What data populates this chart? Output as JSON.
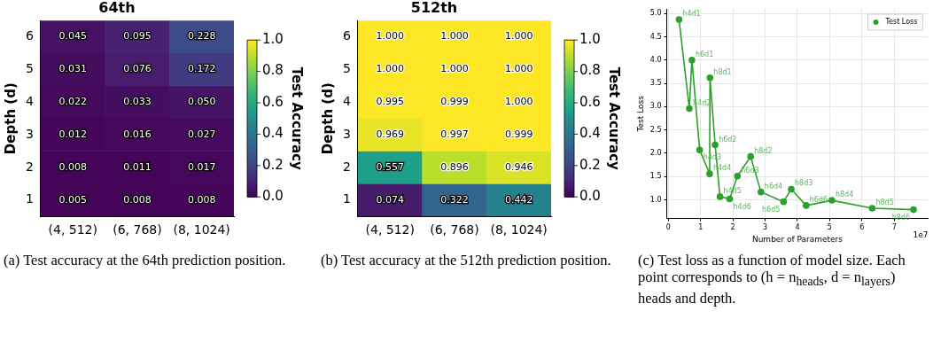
{
  "chart_data": [
    {
      "type": "heatmap",
      "title": "64th",
      "ylabel": "Depth (d)",
      "clabel": "Test Accuracy",
      "categories": [
        "(4, 512)",
        "(6, 768)",
        "(8, 1024)"
      ],
      "y_categories": [
        "6",
        "5",
        "4",
        "3",
        "2",
        "1"
      ],
      "cells": [
        [
          0.045,
          0.095,
          0.228
        ],
        [
          0.031,
          0.076,
          0.172
        ],
        [
          0.022,
          0.033,
          0.05
        ],
        [
          0.012,
          0.016,
          0.027
        ],
        [
          0.008,
          0.011,
          0.017
        ],
        [
          0.005,
          0.008,
          0.008
        ]
      ],
      "cell_labels": [
        [
          "0.045",
          "0.095",
          "0.228"
        ],
        [
          "0.031",
          "0.076",
          "0.172"
        ],
        [
          "0.022",
          "0.033",
          "0.050"
        ],
        [
          "0.012",
          "0.016",
          "0.027"
        ],
        [
          "0.008",
          "0.011",
          "0.017"
        ],
        [
          "0.005",
          "0.008",
          "0.008"
        ]
      ],
      "clim": [
        0,
        1
      ],
      "cticks": [
        {
          "value": 0,
          "label": "0.0"
        },
        {
          "value": 0.2,
          "label": "0.2"
        },
        {
          "value": 0.4,
          "label": "0.4"
        },
        {
          "value": 0.6,
          "label": "0.6"
        },
        {
          "value": 0.8,
          "label": "0.8"
        },
        {
          "value": 1,
          "label": "1.0"
        }
      ],
      "annotations": [
        "(a) Test accuracy at the 64th prediction position."
      ]
    },
    {
      "type": "heatmap",
      "title": "512th",
      "ylabel": "Depth (d)",
      "clabel": "Test Accuracy",
      "categories": [
        "(4, 512)",
        "(6, 768)",
        "(8, 1024)"
      ],
      "y_categories": [
        "6",
        "5",
        "4",
        "3",
        "2",
        "1"
      ],
      "cells": [
        [
          1,
          1,
          1
        ],
        [
          1,
          1,
          1
        ],
        [
          0.995,
          0.999,
          1
        ],
        [
          0.969,
          0.997,
          0.999
        ],
        [
          0.557,
          0.896,
          0.946
        ],
        [
          0.074,
          0.322,
          0.442
        ]
      ],
      "cell_labels": [
        [
          "1.000",
          "1.000",
          "1.000"
        ],
        [
          "1.000",
          "1.000",
          "1.000"
        ],
        [
          "0.995",
          "0.999",
          "1.000"
        ],
        [
          "0.969",
          "0.997",
          "0.999"
        ],
        [
          "0.557",
          "0.896",
          "0.946"
        ],
        [
          "0.074",
          "0.322",
          "0.442"
        ]
      ],
      "clim": [
        0,
        1
      ],
      "cticks": [
        {
          "value": 0,
          "label": "0.0"
        },
        {
          "value": 0.2,
          "label": "0.2"
        },
        {
          "value": 0.4,
          "label": "0.4"
        },
        {
          "value": 0.6,
          "label": "0.6"
        },
        {
          "value": 0.8,
          "label": "0.8"
        },
        {
          "value": 1,
          "label": "1.0"
        }
      ],
      "annotations": [
        "(b) Test accuracy at the 512th prediction position."
      ]
    },
    {
      "type": "line",
      "xlabel": "Number of Parameters",
      "ylabel": "Test Loss",
      "marker": "circle",
      "grid": true,
      "legend": "top right",
      "xlim": [
        -0.05,
        8.05
      ],
      "ylim": [
        0.6,
        5.1
      ],
      "xticks": [
        0,
        1,
        2,
        3,
        4,
        5,
        6,
        7
      ],
      "yticks": [
        {
          "value": 1,
          "label": "1.0"
        },
        {
          "value": 1.5,
          "label": "1.5"
        },
        {
          "value": 2,
          "label": "2.0"
        },
        {
          "value": 2.5,
          "label": "2.5"
        },
        {
          "value": 3,
          "label": "3.0"
        },
        {
          "value": 3.5,
          "label": "3.5"
        },
        {
          "value": 4,
          "label": "4.0"
        },
        {
          "value": 4.5,
          "label": "4.5"
        },
        {
          "value": 5,
          "label": "5.0"
        }
      ],
      "series": [
        {
          "name": "Test Loss",
          "color": "#2ca02c",
          "x": [
            0.33,
            0.65,
            0.73,
            0.97,
            1.28,
            1.29,
            1.45,
            1.6,
            1.9,
            2.14,
            2.55,
            2.87,
            3.57,
            3.81,
            4.27,
            5.07,
            6.32,
            7.6
          ],
          "values": [
            4.87,
            2.96,
            4.0,
            2.07,
            1.56,
            3.62,
            2.18,
            1.07,
            1.02,
            1.51,
            1.93,
            1.17,
            0.96,
            1.23,
            0.88,
            0.99,
            0.82,
            0.79
          ]
        }
      ],
      "annotations": [
        {
          "text": "h4d1",
          "x": 0.33,
          "y": 4.87
        },
        {
          "text": "h4d2",
          "x": 0.65,
          "y": 2.96
        },
        {
          "text": "h6d1",
          "x": 0.73,
          "y": 4.0
        },
        {
          "text": "h4d3",
          "x": 0.97,
          "y": 2.07
        },
        {
          "text": "h4d4",
          "x": 1.28,
          "y": 1.56
        },
        {
          "text": "h8d1",
          "x": 1.29,
          "y": 3.62
        },
        {
          "text": "h6d2",
          "x": 1.45,
          "y": 2.18
        },
        {
          "text": "h4d5",
          "x": 1.6,
          "y": 1.07
        },
        {
          "text": "h4d6",
          "x": 1.9,
          "y": 1.02
        },
        {
          "text": "h6d3",
          "x": 2.14,
          "y": 1.51
        },
        {
          "text": "h8d2",
          "x": 2.55,
          "y": 1.93
        },
        {
          "text": "h6d4",
          "x": 2.87,
          "y": 1.17
        },
        {
          "text": "h6d5",
          "x": 3.57,
          "y": 0.96
        },
        {
          "text": "h8d3",
          "x": 3.81,
          "y": 1.23
        },
        {
          "text": "h6d6",
          "x": 4.27,
          "y": 0.88
        },
        {
          "text": "h8d4",
          "x": 5.07,
          "y": 0.99
        },
        {
          "text": "h8d5",
          "x": 6.32,
          "y": 0.82
        },
        {
          "text": "h8d6",
          "x": 7.6,
          "y": 0.79
        },
        "1e7",
        "(c) Test loss as a function of model size. Each point corresponds to (h = n$_{heads}$, d = n$_{layers}$) heads and depth."
      ]
    }
  ]
}
